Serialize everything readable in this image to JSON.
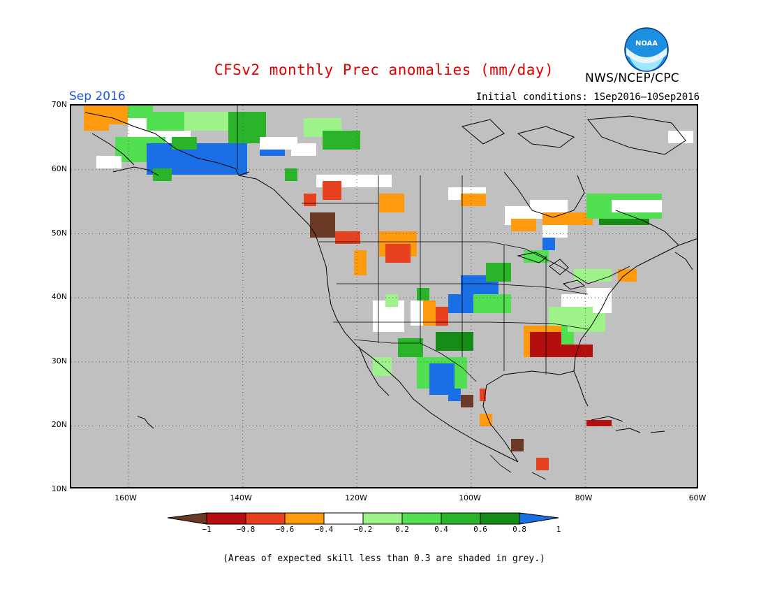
{
  "title": "CFSv2 monthly Prec anomalies (mm/day)",
  "month": "Sep 2016",
  "initial_conditions": "Initial conditions: 1Sep2016—10Sep2016",
  "agency": "NWS/NCEP/CPC",
  "logo_text": "NOAA",
  "lat_labels": [
    "70N",
    "60N",
    "50N",
    "40N",
    "30N",
    "20N",
    "10N"
  ],
  "lon_labels": [
    "160W",
    "140W",
    "120W",
    "100W",
    "80W",
    "60W"
  ],
  "colorbar": {
    "labels": [
      "−1",
      "−0.8",
      "−0.6",
      "−0.4",
      "−0.2",
      "0.2",
      "0.4",
      "0.6",
      "0.8",
      "1"
    ],
    "colors": [
      "#6b3a26",
      "#b50e0e",
      "#e8411f",
      "#ff9a0e",
      "#ffffff",
      "#9ef28a",
      "#52e052",
      "#2ab42a",
      "#158c15",
      "#1a6ee6"
    ]
  },
  "skill_note": "(Areas of expected skill less than 0.3 are shaded in grey.)",
  "colors": {
    "background_grey": "#c0c0c0",
    "title_red": "#e00000",
    "month_blue": "#1a55e0"
  }
}
